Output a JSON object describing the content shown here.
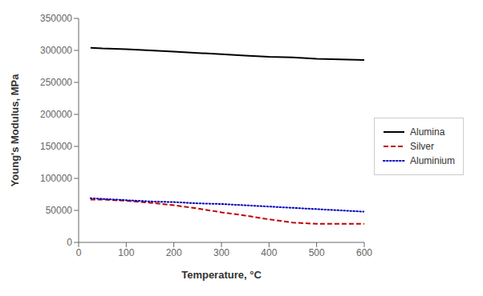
{
  "chart_data": {
    "type": "line",
    "title": "",
    "xlabel": "Temperature, °C",
    "ylabel": "Young's Modulus, MPa",
    "x": [
      25,
      50,
      100,
      150,
      200,
      250,
      300,
      350,
      400,
      450,
      500,
      550,
      600
    ],
    "series": [
      {
        "name": "Alumina",
        "color": "#000000",
        "line_style": "solid",
        "values": [
          304000,
          303000,
          302000,
          300000,
          298000,
          296000,
          294000,
          292000,
          290000,
          289000,
          287000,
          286000,
          285000
        ]
      },
      {
        "name": "Silver",
        "color": "#c00000",
        "line_style": "dashed",
        "values": [
          67000,
          67000,
          65000,
          62000,
          58000,
          53000,
          47000,
          42000,
          36000,
          31000,
          29000,
          29000,
          29000
        ]
      },
      {
        "name": "Aluminium",
        "color": "#0000c0",
        "line_style": "dotted",
        "values": [
          69000,
          68000,
          66000,
          64000,
          63000,
          61000,
          60000,
          58000,
          56000,
          54000,
          52000,
          50000,
          48000
        ]
      }
    ],
    "xlim": [
      0,
      600
    ],
    "ylim": [
      0,
      350000
    ],
    "xticks": [
      0,
      100,
      200,
      300,
      400,
      500,
      600
    ],
    "yticks": [
      0,
      50000,
      100000,
      150000,
      200000,
      250000,
      300000,
      350000
    ],
    "grid": false,
    "legend": "right"
  }
}
